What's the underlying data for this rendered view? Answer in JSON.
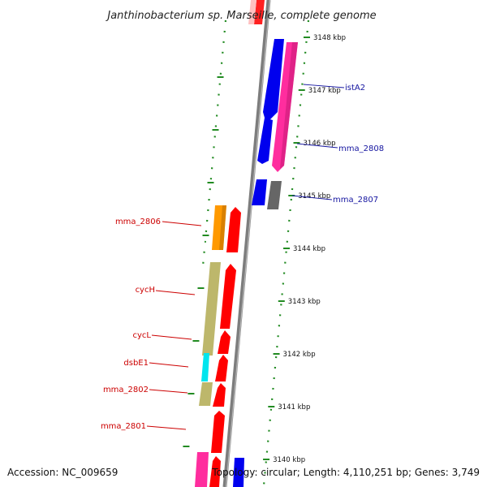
{
  "title": "Janthinobacterium sp. Marseille, complete genome",
  "footer": {
    "accession": "Accession: NC_009659",
    "topology": "Topology: circular; Length: 4,110,251 bp; Genes: 3,749"
  },
  "scale": {
    "labels": [
      "3140 kbp",
      "3141 kbp",
      "3142 kbp",
      "3143 kbp",
      "3144 kbp",
      "3145 kbp",
      "3146 kbp",
      "3147 kbp",
      "3148 kbp"
    ]
  },
  "genes_left": [
    {
      "name": "mma_2806"
    },
    {
      "name": "cycH"
    },
    {
      "name": "cycL"
    },
    {
      "name": "dsbE1"
    },
    {
      "name": "mma_2802"
    },
    {
      "name": "mma_2801"
    }
  ],
  "genes_right": [
    {
      "name": "istA2"
    },
    {
      "name": "mma_2808"
    },
    {
      "name": "mma_2807"
    }
  ],
  "colors": {
    "backbone": "#888888",
    "red": "#ff0000",
    "blue": "#0000ff",
    "pink": "#ff2d9e",
    "orange": "#ff9900",
    "khaki": "#bdb76b",
    "cyan": "#00e5ee",
    "gray": "#666666",
    "dots": "#228b22",
    "red_label": "#cc0000",
    "blue_label": "#1515a0"
  }
}
